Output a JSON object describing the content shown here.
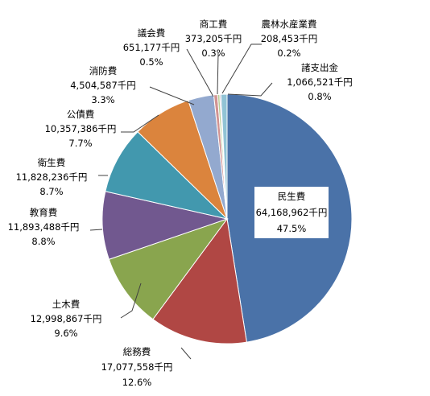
{
  "chart_data": {
    "type": "pie",
    "title": "",
    "slices": [
      {
        "name": "民生費",
        "value_text": "64,168,962千円",
        "value": 64168962,
        "percent": 47.5,
        "percent_text": "47.5%",
        "color": "#4a72a8"
      },
      {
        "name": "総務費",
        "value_text": "17,077,558千円",
        "value": 17077558,
        "percent": 12.6,
        "percent_text": "12.6%",
        "color": "#b04744"
      },
      {
        "name": "土木費",
        "value_text": "12,998,867千円",
        "value": 12998867,
        "percent": 9.6,
        "percent_text": "9.6%",
        "color": "#89a54e"
      },
      {
        "name": "教育費",
        "value_text": "11,893,488千円",
        "value": 11893488,
        "percent": 8.8,
        "percent_text": "8.8%",
        "color": "#71588f"
      },
      {
        "name": "衛生費",
        "value_text": "11,828,236千円",
        "value": 11828236,
        "percent": 8.7,
        "percent_text": "8.7%",
        "color": "#4298ae"
      },
      {
        "name": "公債費",
        "value_text": "10,357,386千円",
        "value": 10357386,
        "percent": 7.7,
        "percent_text": "7.7%",
        "color": "#db843d"
      },
      {
        "name": "消防費",
        "value_text": "4,504,587千円",
        "value": 4504587,
        "percent": 3.3,
        "percent_text": "3.3%",
        "color": "#93a9cf"
      },
      {
        "name": "議会費",
        "value_text": "651,177千円",
        "value": 651177,
        "percent": 0.5,
        "percent_text": "0.5%",
        "color": "#d19392"
      },
      {
        "name": "商工費",
        "value_text": "373,205千円",
        "value": 373205,
        "percent": 0.3,
        "percent_text": "0.3%",
        "color": "#b9cd96"
      },
      {
        "name": "農林水産業費",
        "value_text": "208,453千円",
        "value": 208453,
        "percent": 0.2,
        "percent_text": "0.2%",
        "color": "#a99bbd"
      },
      {
        "name": "諸支出金",
        "value_text": "1,066,521千円",
        "value": 1066521,
        "percent": 0.8,
        "percent_text": "0.8%",
        "color": "#91c3d5"
      }
    ]
  }
}
